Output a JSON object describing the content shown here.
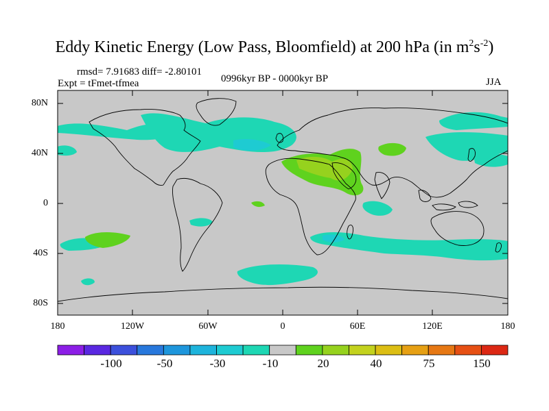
{
  "title": {
    "main": "Eddy Kinetic Energy (Low Pass, Bloomfield) at 200 hPa (in m",
    "sup1": "2",
    "mid": "s",
    "sup2": "-2",
    "end": ")"
  },
  "stats": "rmsd= 7.91683 diff= -2.80101",
  "experiment": "Expt = tFmet-tfmea",
  "period": "0996kyr BP - 0000kyr BP",
  "season": "JJA",
  "lat_ticks": [
    "80N",
    "40N",
    "0",
    "40S",
    "80S"
  ],
  "lon_ticks": [
    "180",
    "120W",
    "60W",
    "0",
    "60E",
    "120E",
    "180"
  ],
  "colorbar": {
    "colors": [
      "#8c1ee6",
      "#5a28e1",
      "#3c50dc",
      "#2878dc",
      "#1e96dc",
      "#1eb4dc",
      "#1ecbd2",
      "#1ed7b4",
      "#c8c8c8",
      "#5fd21e",
      "#96d21e",
      "#c3d21e",
      "#dcbe14",
      "#e6a014",
      "#e67814",
      "#e65014",
      "#dc2814"
    ],
    "labels": [
      "-100",
      "-50",
      "-30",
      "-10",
      "20",
      "40",
      "75",
      "150"
    ]
  },
  "legend_colors": {
    "background": "#c8c8c8",
    "negative_small": "#1ed7b4",
    "negative_medium": "#1ecbd2",
    "positive_small": "#5fd21e",
    "positive_medium": "#96d21e"
  }
}
